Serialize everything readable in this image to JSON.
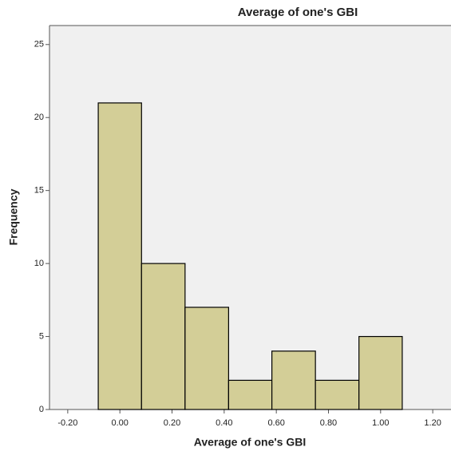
{
  "chart_data": {
    "type": "histogram",
    "title": "Average of one's GBI",
    "x_label": "Average of one's GBI",
    "y_label": "Frequency",
    "bins": [
      -0.083,
      0.083,
      0.25,
      0.417,
      0.583,
      0.75,
      0.917,
      1.083
    ],
    "values": [
      21,
      10,
      7,
      2,
      4,
      2,
      5
    ],
    "color": "#d3ce97",
    "xlim": [
      -0.27,
      1.27
    ],
    "xticks": [
      {
        "value": -0.2,
        "label": "-0.20"
      },
      {
        "value": 0,
        "label": "0.00"
      },
      {
        "value": 0.2,
        "label": "0.20"
      },
      {
        "value": 0.4,
        "label": "0.40"
      },
      {
        "value": 0.6,
        "label": "0.60"
      },
      {
        "value": 0.8,
        "label": "0.80"
      },
      {
        "value": 1,
        "label": "1.00"
      },
      {
        "value": 1.2,
        "label": "1.20"
      }
    ],
    "ylim": [
      0,
      26.3
    ],
    "yticks": [
      0,
      5,
      10,
      15,
      20,
      25
    ]
  }
}
